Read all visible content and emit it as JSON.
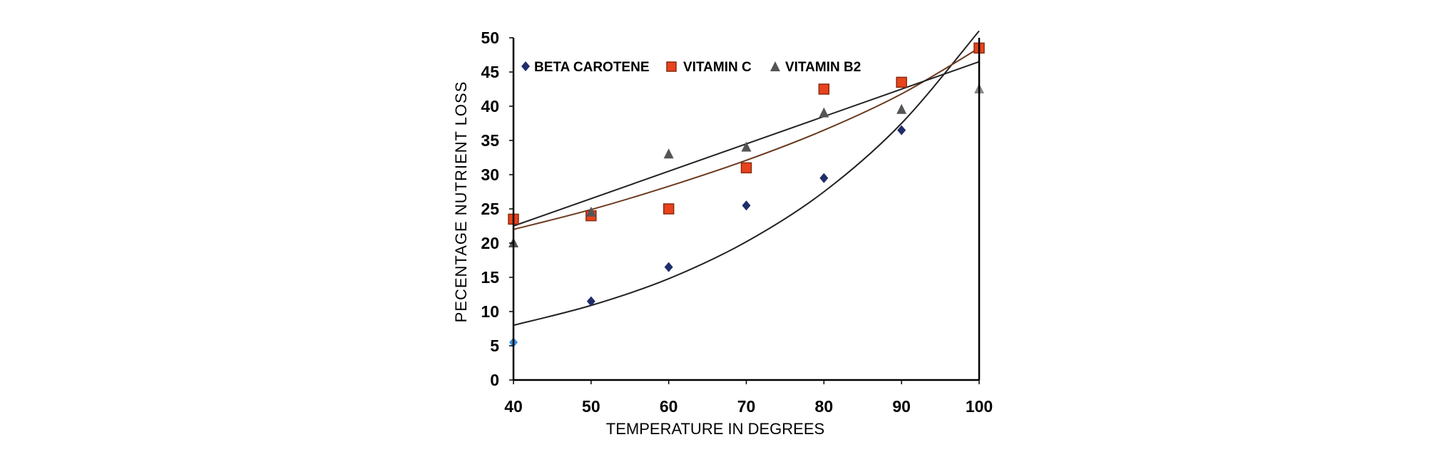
{
  "chart_data": {
    "type": "scatter",
    "title": "",
    "xlabel": "TEMPERATURE IN DEGREES",
    "ylabel": "PECENTAGE NUTRIENT LOSS",
    "x": [
      40,
      50,
      60,
      70,
      80,
      90,
      100
    ],
    "xlim": [
      40,
      100
    ],
    "ylim": [
      0,
      50
    ],
    "xticks": [
      "40",
      "50",
      "60",
      "70",
      "80",
      "90",
      "100"
    ],
    "yticks": [
      "0",
      "5",
      "10",
      "15",
      "20",
      "25",
      "30",
      "35",
      "40",
      "45",
      "50"
    ],
    "grid": false,
    "legend_position": "top",
    "series": [
      {
        "name": "BETA CAROTENE",
        "marker": "diamond",
        "color": "#1f2d6b",
        "values": [
          5.5,
          11.5,
          16.5,
          25.5,
          29.5,
          36.5,
          48.5
        ],
        "trend": "exponential",
        "trend_points": [
          [
            40,
            8
          ],
          [
            50,
            10.9
          ],
          [
            60,
            14.8
          ],
          [
            70,
            20.2
          ],
          [
            80,
            27.5
          ],
          [
            90,
            37.5
          ],
          [
            100,
            51
          ]
        ]
      },
      {
        "name": "VITAMIN C",
        "marker": "square",
        "color": "#e8431c",
        "values": [
          23.5,
          24,
          25,
          31,
          42.5,
          43.5,
          48.5
        ],
        "trend": "exponential",
        "trend_points": [
          [
            40,
            22
          ],
          [
            50,
            24.9
          ],
          [
            60,
            28.3
          ],
          [
            70,
            32.1
          ],
          [
            80,
            36.5
          ],
          [
            90,
            41.8
          ],
          [
            100,
            48.5
          ]
        ]
      },
      {
        "name": "VITAMIN B2",
        "marker": "triangle",
        "color": "#555555",
        "values": [
          20,
          24.5,
          33,
          34,
          39,
          39.5,
          42.5
        ],
        "trend": "linear",
        "trend_points": [
          [
            40,
            22.5
          ],
          [
            100,
            46.5
          ]
        ]
      }
    ]
  }
}
